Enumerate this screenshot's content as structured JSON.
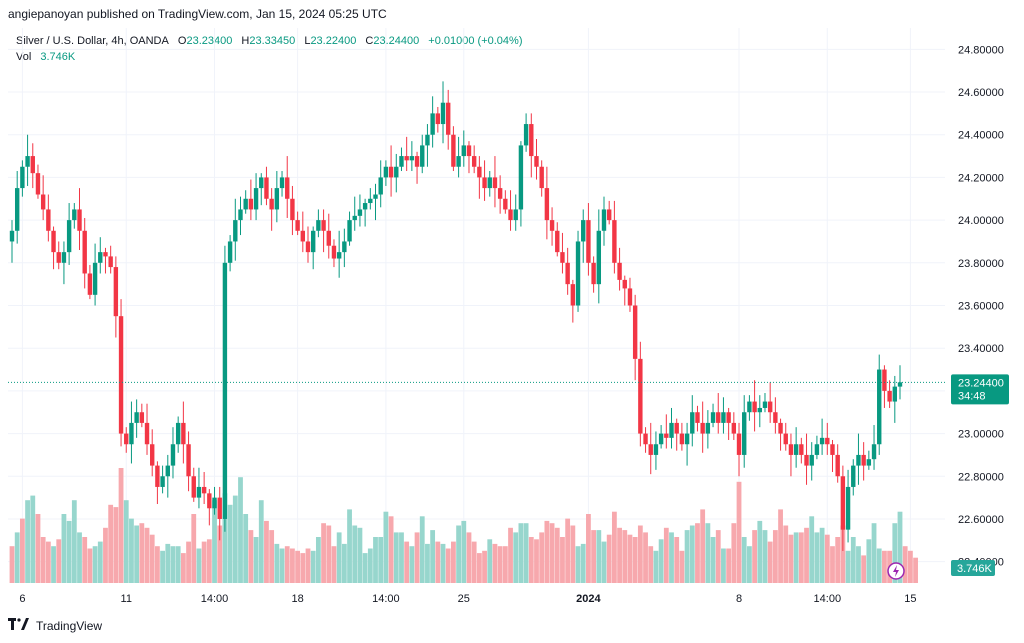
{
  "header": {
    "published": "angiepanoyan published on TradingView.com, Jan 15, 2024 05:25 UTC"
  },
  "legend": {
    "symbol": "Silver / U.S. Dollar, 4h, OANDA",
    "o_label": "O",
    "o_value": "23.23400",
    "h_label": "H",
    "h_value": "23.33450",
    "l_label": "L",
    "l_value": "23.22400",
    "c_label": "C",
    "c_value": "23.24400",
    "change": "+0.01000 (+0.04%)",
    "vol_label": "Vol",
    "vol_value": "3.746K"
  },
  "footer": {
    "brand": "TradingView"
  },
  "colors": {
    "up": "#089981",
    "down": "#f23645",
    "up_vol": "#97d6cd",
    "down_vol": "#f7a8ad",
    "price_line": "#089981"
  },
  "chart_data": {
    "type": "candlestick",
    "ylim": [
      22.3,
      24.9
    ],
    "y_ticks": [
      "24.80000",
      "24.60000",
      "24.40000",
      "24.20000",
      "24.00000",
      "23.80000",
      "23.60000",
      "23.40000",
      "23.20000",
      "23.00000",
      "22.80000",
      "22.60000",
      "22.40000"
    ],
    "y_tick_values": [
      24.8,
      24.6,
      24.4,
      24.2,
      24.0,
      23.8,
      23.6,
      23.4,
      23.2,
      23.0,
      22.8,
      22.6,
      22.4
    ],
    "x_ticks": [
      {
        "label": "6",
        "index": 2,
        "bold": false
      },
      {
        "label": "11",
        "index": 22,
        "bold": false
      },
      {
        "label": "14:00",
        "index": 39,
        "bold": false
      },
      {
        "label": "18",
        "index": 55,
        "bold": false
      },
      {
        "label": "14:00",
        "index": 72,
        "bold": false
      },
      {
        "label": "25",
        "index": 87,
        "bold": false
      },
      {
        "label": "2024",
        "index": 111,
        "bold": true
      },
      {
        "label": "8",
        "index": 140,
        "bold": false
      },
      {
        "label": "14:00",
        "index": 157,
        "bold": false
      },
      {
        "label": "15",
        "index": 173,
        "bold": false
      }
    ],
    "last_price_label": "23.24400",
    "countdown": "34:48",
    "volume_label": "3.746K",
    "closes": [
      23.95,
      24.15,
      24.25,
      24.3,
      24.22,
      24.12,
      24.05,
      23.95,
      23.85,
      23.8,
      23.85,
      24.0,
      24.05,
      23.95,
      23.75,
      23.65,
      23.8,
      23.85,
      23.83,
      23.78,
      23.55,
      23.0,
      22.95,
      23.05,
      23.1,
      23.05,
      22.95,
      22.85,
      22.75,
      22.8,
      22.85,
      22.95,
      23.05,
      22.95,
      22.8,
      22.7,
      22.75,
      22.72,
      22.65,
      22.7,
      22.6,
      23.8,
      23.9,
      24.0,
      24.05,
      24.1,
      24.05,
      24.15,
      24.2,
      24.1,
      24.05,
      24.15,
      24.2,
      24.1,
      24.0,
      23.95,
      23.9,
      23.85,
      23.95,
      24.0,
      23.95,
      23.88,
      23.82,
      23.85,
      23.9,
      24.0,
      24.02,
      24.05,
      24.08,
      24.1,
      24.12,
      24.2,
      24.25,
      24.2,
      24.25,
      24.3,
      24.28,
      24.3,
      24.25,
      24.35,
      24.4,
      24.5,
      24.45,
      24.55,
      24.4,
      24.25,
      24.3,
      24.35,
      24.3,
      24.25,
      24.2,
      24.15,
      24.2,
      24.15,
      24.1,
      24.05,
      24.0,
      24.05,
      24.35,
      24.45,
      24.3,
      24.25,
      24.15,
      24.0,
      23.95,
      23.85,
      23.8,
      23.7,
      23.6,
      23.9,
      24.0,
      23.8,
      23.7,
      23.95,
      24.05,
      24.0,
      23.8,
      23.72,
      23.68,
      23.6,
      23.35,
      23.0,
      22.95,
      22.9,
      22.95,
      23.0,
      22.98,
      23.05,
      23.0,
      22.95,
      23.0,
      23.1,
      23.05,
      23.0,
      23.05,
      23.1,
      23.05,
      23.1,
      23.05,
      23.0,
      22.9,
      23.1,
      23.15,
      23.1,
      23.12,
      23.15,
      23.1,
      23.05,
      23.0,
      22.95,
      22.9,
      22.95,
      22.9,
      22.85,
      22.9,
      22.95,
      22.98,
      22.95,
      22.9,
      22.8,
      22.55,
      22.75,
      22.85,
      22.9,
      22.85,
      22.88,
      22.95,
      23.3,
      23.2,
      23.15,
      23.22,
      23.24
    ],
    "volumes": [
      1.6,
      2.2,
      2.8,
      3.6,
      3.8,
      3.0,
      2.0,
      1.8,
      1.6,
      1.9,
      3.0,
      2.7,
      3.6,
      2.2,
      2.0,
      1.5,
      1.6,
      1.8,
      2.4,
      3.4,
      3.3,
      5.0,
      3.6,
      2.8,
      2.5,
      2.6,
      2.4,
      2.1,
      1.6,
      1.4,
      1.7,
      1.6,
      1.6,
      1.3,
      1.8,
      3.0,
      1.5,
      1.8,
      1.9,
      3.6,
      2.5,
      3.9,
      3.4,
      3.8,
      4.6,
      3.0,
      2.3,
      2.0,
      3.6,
      2.7,
      2.3,
      1.7,
      1.5,
      1.6,
      1.5,
      1.4,
      1.3,
      1.5,
      1.4,
      2.0,
      2.6,
      2.5,
      1.6,
      2.2,
      1.7,
      3.2,
      2.5,
      2.4,
      1.3,
      1.5,
      2.0,
      2.0,
      3.1,
      2.9,
      2.2,
      2.2,
      1.8,
      1.6,
      2.2,
      2.9,
      1.7,
      2.3,
      1.8,
      1.7,
      1.5,
      1.8,
      2.5,
      2.7,
      2.2,
      1.8,
      1.3,
      1.4,
      1.9,
      1.7,
      1.6,
      1.6,
      2.4,
      2.2,
      2.6,
      2.6,
      2.0,
      1.9,
      2.2,
      2.7,
      2.6,
      2.4,
      2.0,
      2.8,
      2.5,
      1.6,
      1.7,
      3.0,
      2.3,
      2.3,
      1.8,
      2.1,
      3.1,
      2.4,
      2.3,
      2.1,
      2.0,
      2.5,
      2.2,
      1.6,
      1.4,
      1.9,
      2.4,
      2.2,
      2.0,
      1.4,
      2.3,
      2.5,
      2.6,
      3.2,
      2.6,
      2.0,
      2.3,
      1.5,
      1.5,
      2.6,
      4.4,
      2.0,
      1.6,
      2.3,
      2.7,
      2.3,
      1.8,
      2.3,
      3.2,
      2.5,
      2.1,
      2.2,
      2.2,
      2.4,
      2.9,
      2.2,
      2.4,
      2.1,
      1.6,
      2.0,
      2.5,
      1.4,
      2.0,
      1.6,
      1.2,
      1.9,
      2.6,
      1.5,
      1.4,
      1.4,
      2.6,
      3.1,
      1.6,
      1.4,
      1.1
    ],
    "volume_up": [
      0,
      1,
      0,
      1,
      1,
      0,
      0,
      0,
      1,
      0,
      1,
      1,
      1,
      1,
      0,
      0,
      1,
      1,
      0,
      0,
      0,
      0,
      1,
      1,
      1,
      0,
      0,
      0,
      0,
      1,
      1,
      1,
      1,
      0,
      0,
      0,
      1,
      0,
      0,
      1,
      0,
      1,
      1,
      1,
      1,
      1,
      0,
      1,
      1,
      0,
      0,
      1,
      1,
      0,
      0,
      0,
      0,
      0,
      1,
      1,
      0,
      0,
      0,
      1,
      1,
      1,
      1,
      1,
      1,
      1,
      1,
      1,
      1,
      0,
      1,
      1,
      0,
      1,
      0,
      1,
      1,
      1,
      0,
      1,
      0,
      0,
      1,
      1,
      0,
      0,
      0,
      0,
      1,
      0,
      0,
      0,
      0,
      1,
      1,
      1,
      0,
      0,
      0,
      0,
      0,
      0,
      0,
      0,
      0,
      1,
      1,
      0,
      0,
      1,
      1,
      0,
      0,
      0,
      0,
      0,
      0,
      0,
      0,
      0,
      1,
      1,
      0,
      1,
      0,
      0,
      1,
      1,
      0,
      0,
      1,
      1,
      0,
      1,
      0,
      0,
      0,
      1,
      1,
      0,
      1,
      1,
      0,
      0,
      0,
      0,
      0,
      1,
      0,
      0,
      1,
      1,
      1,
      0,
      0,
      0,
      0,
      1,
      1,
      1,
      0,
      1,
      1,
      1,
      0,
      0,
      1,
      1
    ]
  }
}
